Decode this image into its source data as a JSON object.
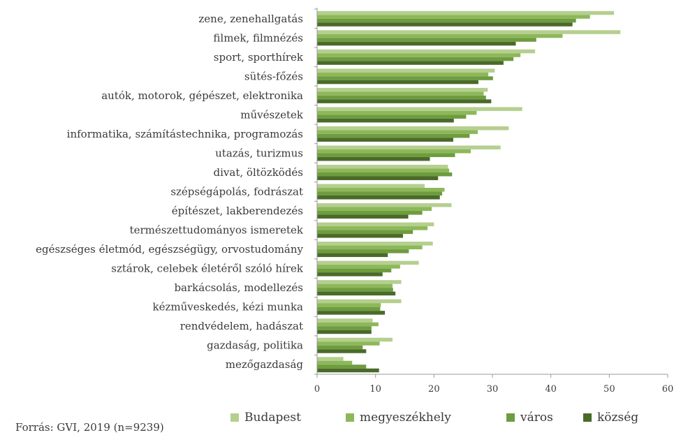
{
  "chart_data": {
    "type": "bar",
    "orientation": "horizontal",
    "categories": [
      "zene, zenehallgatás",
      "filmek, filmnézés",
      "sport, sporthírek",
      "sütés-főzés",
      "autók, motorok, gépészet, elektronika",
      "művészetek",
      "informatika, számítástechnika, programozás",
      "utazás, turizmus",
      "divat, öltözködés",
      "szépségápolás, fodrászat",
      "építészet, lakberendezés",
      "természettudományos ismeretek",
      "egészséges életmód, egészségügy, orvostudomány",
      "sztárok, celebek életéről szóló hírek",
      "barkácsolás, modellezés",
      "kézművesked­és, kézi munka",
      "rendvédelem, hadászat",
      "gazdaság, politika",
      "mezőgazdaság"
    ],
    "series": [
      {
        "name": "Budapest",
        "color": "#b5cf8f",
        "values": [
          50.8,
          51.9,
          37.3,
          30.4,
          29.2,
          35.1,
          32.8,
          31.4,
          22.4,
          18.4,
          23.0,
          20.0,
          19.8,
          17.4,
          14.4,
          14.4,
          9.5,
          12.9,
          4.5
        ]
      },
      {
        "name": "megyeszékhely",
        "color": "#8db85a",
        "values": [
          46.7,
          42.0,
          34.8,
          29.3,
          28.5,
          27.3,
          27.5,
          26.3,
          22.6,
          21.8,
          19.6,
          18.9,
          18.0,
          14.2,
          12.9,
          10.9,
          10.5,
          10.7,
          6.0
        ]
      },
      {
        "name": "város",
        "color": "#6e9c3f",
        "values": [
          44.3,
          37.5,
          33.6,
          30.1,
          28.9,
          25.5,
          26.1,
          23.6,
          23.1,
          21.4,
          18.0,
          16.4,
          15.7,
          12.7,
          13.0,
          10.8,
          9.3,
          7.8,
          8.4
        ]
      },
      {
        "name": "község",
        "color": "#4a6a2a",
        "values": [
          43.7,
          34.0,
          31.9,
          27.6,
          29.8,
          23.4,
          23.3,
          19.3,
          20.7,
          21.0,
          15.6,
          14.7,
          12.1,
          11.2,
          13.4,
          11.6,
          9.3,
          8.4,
          10.6
        ]
      }
    ],
    "xlim": [
      0,
      60
    ],
    "xticks": [
      "0",
      "10",
      "20",
      "30",
      "40",
      "50",
      "60"
    ],
    "grid": false,
    "legend_position": "bottom"
  },
  "legend": [
    {
      "label": "Budapest",
      "color": "#b5cf8f"
    },
    {
      "label": "megyeszékhely",
      "color": "#8db85a"
    },
    {
      "label": "város",
      "color": "#6e9c3f"
    },
    {
      "label": "község",
      "color": "#4a6a2a"
    }
  ],
  "source": "Forrás: GVI, 2019 (n=9239)"
}
